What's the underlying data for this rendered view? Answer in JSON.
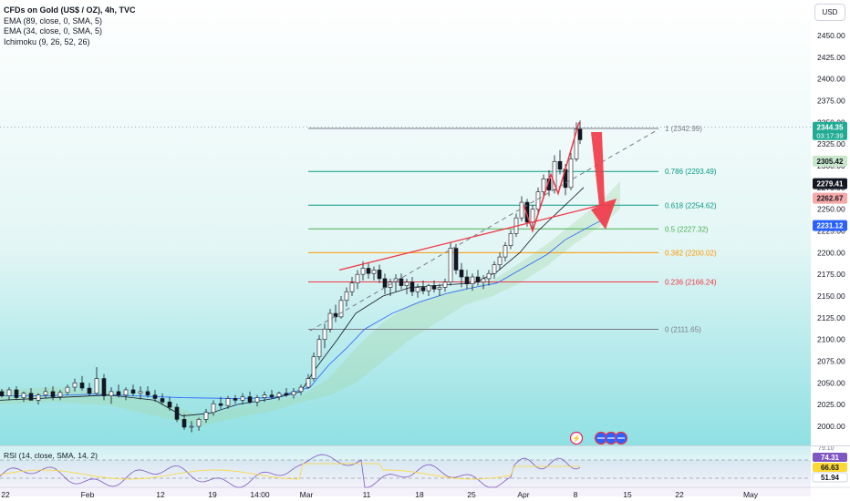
{
  "header": {
    "title": "CFDs on Gold (US$ / OZ), 4h, TVC",
    "indicators": [
      "EMA (89, close, 0, SMA, 5)",
      "EMA (34, close, 0, SMA, 5)",
      "Ichimoku (9, 26, 52, 26)"
    ],
    "currency_button": "USD"
  },
  "rsi": {
    "legend": "RSI (14, close, SMA, 14, 2)",
    "values": [
      "74.31",
      "66.63",
      "51.94"
    ],
    "top_tick": "79.10",
    "colors": [
      "#7e57c2",
      "#fdd835",
      "#ffffff"
    ]
  },
  "price_labels": [
    {
      "text": "2344.35",
      "sub": "03:17:39",
      "value": 2344.35,
      "color": "#22ab94"
    },
    {
      "text": "2305.42",
      "value": 2305.42,
      "color": "#c8e6c9",
      "dark": true
    },
    {
      "text": "2279.41",
      "value": 2279.41,
      "color": "#131722"
    },
    {
      "text": "2262.67",
      "value": 2262.67,
      "color": "#f7a9a8",
      "dark": true
    },
    {
      "text": "2231.12",
      "value": 2231.12,
      "color": "#2962ff"
    }
  ],
  "event_icons": [
    "lightning-icon",
    "us-flag-icon",
    "us-flag-icon",
    "us-flag-icon"
  ],
  "chart_data": {
    "type": "candlestick",
    "symbol": "CFDs on Gold (US$ / OZ)",
    "interval": "4h",
    "y_ticks": [
      2000,
      2025,
      2050,
      2075,
      2100,
      2125,
      2150,
      2175,
      2200,
      2225,
      2250,
      2275,
      2300,
      2325,
      2350,
      2375,
      2400,
      2425,
      2450
    ],
    "y_tick_labels": [
      "2000.00",
      "2025.00",
      "2050.00",
      "2075.00",
      "2100.00",
      "2125.00",
      "2150.00",
      "2175.00",
      "2200.00",
      "2225.00",
      "2250.00",
      "2275.00",
      "2300.00",
      "2325.00",
      "2350.00",
      "2375.00",
      "2400.00",
      "2425.00",
      "2450.00"
    ],
    "ylim": [
      1972,
      2470
    ],
    "x_labels": [
      "22",
      "Feb",
      "12",
      "19",
      "14:00",
      "Mar",
      "11",
      "18",
      "25",
      "Apr",
      "8",
      "15",
      "22",
      "May"
    ],
    "fibonacci": [
      {
        "ratio": "1",
        "value": 2342.99,
        "label": "1 (2342.99)",
        "color": "#787b86"
      },
      {
        "ratio": "0.786",
        "value": 2293.49,
        "label": "0.786 (2293.49)",
        "color": "#089981"
      },
      {
        "ratio": "0.618",
        "value": 2254.62,
        "label": "0.618 (2254.62)",
        "color": "#089981"
      },
      {
        "ratio": "0.5",
        "value": 2227.32,
        "label": "0.5 (2227.32)",
        "color": "#4caf50"
      },
      {
        "ratio": "0.382",
        "value": 2200.02,
        "label": "0.382 (2200.02)",
        "color": "#ff9800"
      },
      {
        "ratio": "0.236",
        "value": 2166.24,
        "label": "0.236 (2166.24)",
        "color": "#f23645"
      },
      {
        "ratio": "0",
        "value": 2111.65,
        "label": "0 (2111.65)",
        "color": "#787b86"
      }
    ],
    "series": [
      {
        "name": "EMA (89, close, 0, SMA, 5)",
        "color": "#2962ff",
        "points": [
          [
            0,
            2035
          ],
          [
            50,
            2035
          ],
          [
            100,
            2037
          ],
          [
            150,
            2035
          ],
          [
            200,
            2033
          ],
          [
            260,
            2032
          ],
          [
            300,
            2033
          ],
          [
            340,
            2045
          ],
          [
            360,
            2070
          ],
          [
            380,
            2090
          ],
          [
            400,
            2112
          ],
          [
            430,
            2130
          ],
          [
            460,
            2143
          ],
          [
            490,
            2153
          ],
          [
            520,
            2160
          ],
          [
            545,
            2165
          ],
          [
            570,
            2180
          ],
          [
            600,
            2198
          ],
          [
            620,
            2215
          ],
          [
            650,
            2232
          ],
          [
            665,
            2240
          ]
        ]
      },
      {
        "name": "EMA (34, close, 0, SMA, 5)",
        "color": "#131722",
        "points": [
          [
            0,
            2030
          ],
          [
            60,
            2033
          ],
          [
            120,
            2036
          ],
          [
            170,
            2030
          ],
          [
            200,
            2012
          ],
          [
            230,
            2015
          ],
          [
            260,
            2025
          ],
          [
            300,
            2032
          ],
          [
            330,
            2040
          ],
          [
            345,
            2065
          ],
          [
            370,
            2100
          ],
          [
            390,
            2130
          ],
          [
            420,
            2150
          ],
          [
            450,
            2160
          ],
          [
            490,
            2163
          ],
          [
            520,
            2165
          ],
          [
            545,
            2178
          ],
          [
            570,
            2200
          ],
          [
            590,
            2225
          ],
          [
            610,
            2245
          ],
          [
            630,
            2265
          ],
          [
            640,
            2275
          ]
        ]
      }
    ],
    "candles": [
      [
        0,
        2040,
        2043,
        2033,
        2035
      ],
      [
        8,
        2035,
        2045,
        2030,
        2042
      ],
      [
        16,
        2042,
        2046,
        2030,
        2033
      ],
      [
        24,
        2033,
        2040,
        2028,
        2038
      ],
      [
        32,
        2038,
        2044,
        2034,
        2030
      ],
      [
        40,
        2030,
        2038,
        2025,
        2036
      ],
      [
        48,
        2036,
        2045,
        2032,
        2040
      ],
      [
        56,
        2040,
        2046,
        2030,
        2034
      ],
      [
        64,
        2034,
        2042,
        2030,
        2039
      ],
      [
        72,
        2039,
        2048,
        2036,
        2045
      ],
      [
        80,
        2045,
        2055,
        2040,
        2050
      ],
      [
        88,
        2050,
        2058,
        2041,
        2044
      ],
      [
        96,
        2044,
        2050,
        2035,
        2038
      ],
      [
        104,
        2038,
        2068,
        2036,
        2055
      ],
      [
        112,
        2055,
        2060,
        2030,
        2035
      ],
      [
        120,
        2035,
        2045,
        2026,
        2040
      ],
      [
        128,
        2040,
        2048,
        2033,
        2036
      ],
      [
        136,
        2036,
        2045,
        2030,
        2042
      ],
      [
        144,
        2042,
        2048,
        2035,
        2038
      ],
      [
        152,
        2038,
        2046,
        2031,
        2040
      ],
      [
        160,
        2040,
        2046,
        2033,
        2036
      ],
      [
        168,
        2036,
        2042,
        2028,
        2032
      ],
      [
        176,
        2032,
        2038,
        2025,
        2028
      ],
      [
        184,
        2028,
        2034,
        2018,
        2022
      ],
      [
        192,
        2022,
        2026,
        2005,
        2008
      ],
      [
        200,
        2008,
        2014,
        1996,
        1999
      ],
      [
        208,
        1999,
        2006,
        1993,
        2000
      ],
      [
        216,
        2000,
        2010,
        1995,
        2008
      ],
      [
        224,
        2008,
        2020,
        2004,
        2016
      ],
      [
        232,
        2016,
        2030,
        2012,
        2026
      ],
      [
        240,
        2026,
        2034,
        2020,
        2024
      ],
      [
        248,
        2024,
        2035,
        2020,
        2032
      ],
      [
        256,
        2032,
        2036,
        2026,
        2030
      ],
      [
        264,
        2030,
        2038,
        2025,
        2034
      ],
      [
        272,
        2034,
        2040,
        2026,
        2028
      ],
      [
        280,
        2028,
        2036,
        2023,
        2033
      ],
      [
        288,
        2033,
        2040,
        2028,
        2036
      ],
      [
        296,
        2036,
        2042,
        2032,
        2034
      ],
      [
        304,
        2034,
        2040,
        2030,
        2038
      ],
      [
        312,
        2038,
        2044,
        2034,
        2036
      ],
      [
        320,
        2036,
        2044,
        2032,
        2040
      ],
      [
        328,
        2040,
        2048,
        2036,
        2045
      ],
      [
        336,
        2045,
        2060,
        2043,
        2055
      ],
      [
        342,
        2055,
        2085,
        2052,
        2080
      ],
      [
        348,
        2080,
        2105,
        2076,
        2100
      ],
      [
        354,
        2100,
        2118,
        2090,
        2112
      ],
      [
        360,
        2112,
        2135,
        2108,
        2130
      ],
      [
        366,
        2130,
        2140,
        2120,
        2126
      ],
      [
        372,
        2126,
        2150,
        2124,
        2145
      ],
      [
        378,
        2145,
        2160,
        2138,
        2155
      ],
      [
        384,
        2155,
        2172,
        2150,
        2165
      ],
      [
        390,
        2165,
        2180,
        2158,
        2175
      ],
      [
        396,
        2175,
        2190,
        2168,
        2182
      ],
      [
        402,
        2182,
        2188,
        2170,
        2176
      ],
      [
        408,
        2176,
        2184,
        2168,
        2180
      ],
      [
        414,
        2180,
        2186,
        2165,
        2170
      ],
      [
        420,
        2170,
        2176,
        2152,
        2160
      ],
      [
        426,
        2160,
        2170,
        2150,
        2166
      ],
      [
        432,
        2166,
        2175,
        2155,
        2170
      ],
      [
        438,
        2170,
        2176,
        2158,
        2162
      ],
      [
        444,
        2162,
        2170,
        2152,
        2166
      ],
      [
        450,
        2166,
        2172,
        2150,
        2155
      ],
      [
        456,
        2155,
        2164,
        2148,
        2160
      ],
      [
        462,
        2160,
        2168,
        2152,
        2156
      ],
      [
        468,
        2156,
        2164,
        2150,
        2162
      ],
      [
        474,
        2162,
        2168,
        2154,
        2158
      ],
      [
        480,
        2158,
        2164,
        2150,
        2160
      ],
      [
        486,
        2160,
        2170,
        2155,
        2166
      ],
      [
        492,
        2166,
        2212,
        2162,
        2205
      ],
      [
        498,
        2205,
        2210,
        2175,
        2180
      ],
      [
        504,
        2180,
        2188,
        2160,
        2172
      ],
      [
        510,
        2172,
        2180,
        2158,
        2164
      ],
      [
        516,
        2164,
        2176,
        2156,
        2172
      ],
      [
        522,
        2172,
        2180,
        2162,
        2166
      ],
      [
        528,
        2166,
        2174,
        2158,
        2170
      ],
      [
        534,
        2170,
        2180,
        2162,
        2176
      ],
      [
        540,
        2176,
        2190,
        2170,
        2186
      ],
      [
        546,
        2186,
        2200,
        2180,
        2195
      ],
      [
        552,
        2195,
        2212,
        2190,
        2208
      ],
      [
        558,
        2208,
        2226,
        2204,
        2222
      ],
      [
        564,
        2222,
        2245,
        2218,
        2240
      ],
      [
        570,
        2240,
        2265,
        2236,
        2258
      ],
      [
        576,
        2258,
        2262,
        2230,
        2235
      ],
      [
        582,
        2235,
        2255,
        2226,
        2250
      ],
      [
        588,
        2250,
        2275,
        2246,
        2270
      ],
      [
        594,
        2270,
        2290,
        2262,
        2285
      ],
      [
        600,
        2285,
        2295,
        2265,
        2272
      ],
      [
        606,
        2272,
        2312,
        2268,
        2305
      ],
      [
        612,
        2305,
        2318,
        2290,
        2296
      ],
      [
        618,
        2296,
        2302,
        2266,
        2275
      ],
      [
        624,
        2275,
        2315,
        2272,
        2308
      ],
      [
        630,
        2308,
        2350,
        2305,
        2342
      ],
      [
        634,
        2342,
        2352,
        2325,
        2330
      ]
    ]
  }
}
